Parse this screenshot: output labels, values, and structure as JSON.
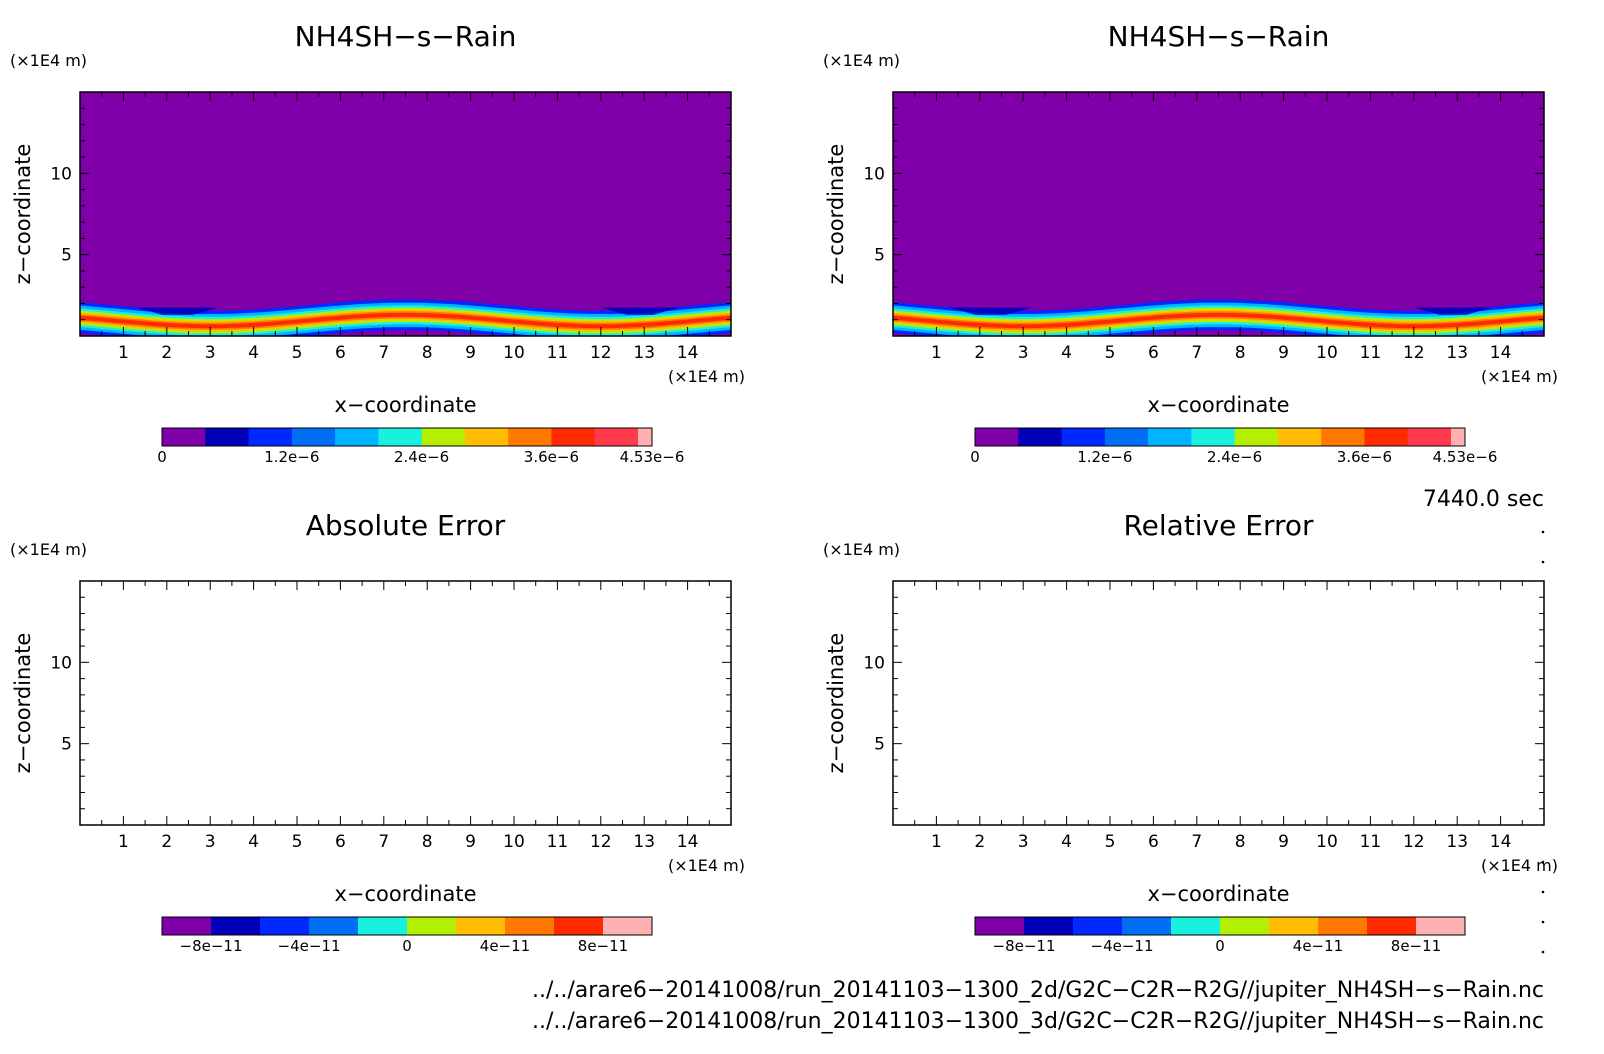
{
  "colors": {
    "cmap": [
      "#7f00a8",
      "#0000b8",
      "#0028ff",
      "#006ff5",
      "#00b4ff",
      "#18f0e0",
      "#b4ee00",
      "#ffbc00",
      "#ff7800",
      "#ff2a00",
      "#ff3a4a",
      "#ffb0b0"
    ],
    "purple_bg": "#7f00a8"
  },
  "chart_data": [
    {
      "type": "heatmap",
      "title": "NH4SH−s−Rain",
      "xlabel": "x−coordinate",
      "ylabel": "z−coordinate",
      "xunit": "(×1E4 m)",
      "yunit": "(×1E4 m)",
      "xlim": [
        0,
        15
      ],
      "ylim": [
        0,
        15
      ],
      "x_ticks": [
        1,
        2,
        3,
        4,
        5,
        6,
        7,
        8,
        9,
        10,
        11,
        12,
        13,
        14
      ],
      "y_ticks": [
        5,
        10
      ],
      "colorbar": {
        "min": 0,
        "max": 4.53e-06,
        "ticks": [
          "0",
          "1.2e−6",
          "2.4e−6",
          "3.6e−6",
          "4.53e−6"
        ],
        "tick_values": [
          0,
          1.2e-06,
          2.4e-06,
          3.6e-06,
          4.53e-06
        ]
      },
      "field": "thin layer near z≈0.5–1.5, wavy with crests near x≈3, 7.5, 12; max 4.53e-6"
    },
    {
      "type": "heatmap",
      "title": "NH4SH−s−Rain",
      "xlabel": "x−coordinate",
      "ylabel": "z−coordinate",
      "xunit": "(×1E4 m)",
      "yunit": "(×1E4 m)",
      "xlim": [
        0,
        15
      ],
      "ylim": [
        0,
        15
      ],
      "x_ticks": [
        1,
        2,
        3,
        4,
        5,
        6,
        7,
        8,
        9,
        10,
        11,
        12,
        13,
        14
      ],
      "y_ticks": [
        5,
        10
      ],
      "colorbar": {
        "min": 0,
        "max": 4.53e-06,
        "ticks": [
          "0",
          "1.2e−6",
          "2.4e−6",
          "3.6e−6",
          "4.53e−6"
        ],
        "tick_values": [
          0,
          1.2e-06,
          2.4e-06,
          3.6e-06,
          4.53e-06
        ]
      },
      "field": "thin layer near z≈0.5–1.5, wavy with crests near x≈3, 7.5, 12; max 4.53e-6"
    },
    {
      "type": "heatmap",
      "title": "Absolute Error",
      "xlabel": "x−coordinate",
      "ylabel": "z−coordinate",
      "xunit": "(×1E4 m)",
      "yunit": "(×1E4 m)",
      "xlim": [
        0,
        15
      ],
      "ylim": [
        0,
        15
      ],
      "x_ticks": [
        1,
        2,
        3,
        4,
        5,
        6,
        7,
        8,
        9,
        10,
        11,
        12,
        13,
        14
      ],
      "y_ticks": [
        5,
        10
      ],
      "colorbar": {
        "min": -1e-10,
        "max": 1e-10,
        "ticks": [
          "−8e−11",
          "−4e−11",
          "0",
          "4e−11",
          "8e−11"
        ],
        "tick_values": [
          -8e-11,
          -4e-11,
          0,
          4e-11,
          8e-11
        ]
      },
      "field": "empty"
    },
    {
      "type": "heatmap",
      "title": "Relative Error",
      "xlabel": "x−coordinate",
      "ylabel": "z−coordinate",
      "xunit": "(×1E4 m)",
      "yunit": "(×1E4 m)",
      "xlim": [
        0,
        15
      ],
      "ylim": [
        0,
        15
      ],
      "x_ticks": [
        1,
        2,
        3,
        4,
        5,
        6,
        7,
        8,
        9,
        10,
        11,
        12,
        13,
        14
      ],
      "y_ticks": [
        5,
        10
      ],
      "colorbar": {
        "min": -1e-10,
        "max": 1e-10,
        "ticks": [
          "−8e−11",
          "−4e−11",
          "0",
          "4e−11",
          "8e−11"
        ],
        "tick_values": [
          -8e-11,
          -4e-11,
          0,
          4e-11,
          8e-11
        ]
      },
      "field": "empty"
    }
  ],
  "footer": {
    "time_label": "7440.0 sec",
    "path_2d": "../../arare6−20141008/run_20141103−1300_2d/G2C−C2R−R2G//jupiter_NH4SH−s−Rain.nc",
    "path_3d": "../../arare6−20141008/run_20141103−1300_3d/G2C−C2R−R2G//jupiter_NH4SH−s−Rain.nc"
  }
}
